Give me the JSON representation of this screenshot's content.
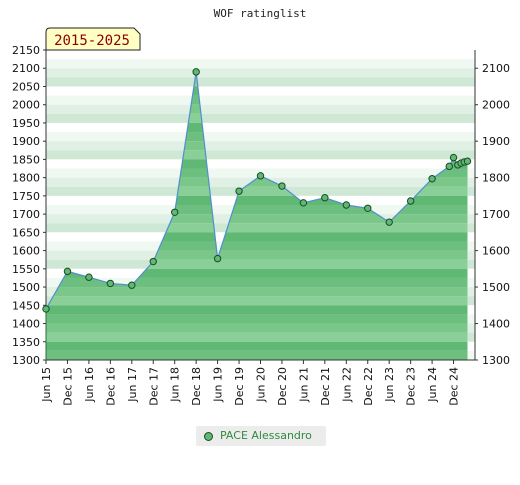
{
  "chart_data": {
    "type": "area",
    "title": "WOF ratinglist",
    "period_badge": "2015-2025",
    "left_ticks": [
      "2150",
      "2100",
      "2050",
      "2000",
      "1950",
      "1900",
      "1850",
      "1800",
      "1750",
      "1700",
      "1650",
      "1600",
      "1550",
      "1500",
      "1450",
      "1400",
      "1350",
      "1300"
    ],
    "right_ticks": [
      "2100",
      "2000",
      "1900",
      "1800",
      "1700",
      "1600",
      "1500",
      "1400",
      "1300"
    ],
    "ylim": [
      1300,
      2150
    ],
    "x_ticks": [
      "Jun 15",
      "Dec 15",
      "Jun 16",
      "Dec 16",
      "Jun 17",
      "Dec 17",
      "Jun 18",
      "Dec 18",
      "Jun 19",
      "Dec 19",
      "Jun 20",
      "Dec 20",
      "Jun 21",
      "Dec 21",
      "Jun 22",
      "Dec 22",
      "Jun 23",
      "Dec 23",
      "Jun 24",
      "Dec 24"
    ],
    "series": [
      {
        "name": "PACE Alessandro",
        "color": "#5fb873",
        "points": [
          {
            "x": 0,
            "y": 1440
          },
          {
            "x": 1,
            "y": 1543
          },
          {
            "x": 2,
            "y": 1527
          },
          {
            "x": 3,
            "y": 1510
          },
          {
            "x": 4,
            "y": 1505
          },
          {
            "x": 5,
            "y": 1570
          },
          {
            "x": 6,
            "y": 1705
          },
          {
            "x": 7,
            "y": 2090
          },
          {
            "x": 8,
            "y": 1578
          },
          {
            "x": 9,
            "y": 1763
          },
          {
            "x": 10,
            "y": 1805
          },
          {
            "x": 11,
            "y": 1777
          },
          {
            "x": 12,
            "y": 1731
          },
          {
            "x": 13,
            "y": 1745
          },
          {
            "x": 14,
            "y": 1725
          },
          {
            "x": 15,
            "y": 1716
          },
          {
            "x": 16,
            "y": 1678
          },
          {
            "x": 17,
            "y": 1736
          },
          {
            "x": 18,
            "y": 1797
          },
          {
            "x": 18.8,
            "y": 1831
          },
          {
            "x": 19.0,
            "y": 1855
          },
          {
            "x": 19.2,
            "y": 1835
          },
          {
            "x": 19.35,
            "y": 1840
          },
          {
            "x": 19.5,
            "y": 1843
          },
          {
            "x": 19.65,
            "y": 1845
          }
        ]
      }
    ],
    "grid": true,
    "legend_position": "bottom"
  }
}
